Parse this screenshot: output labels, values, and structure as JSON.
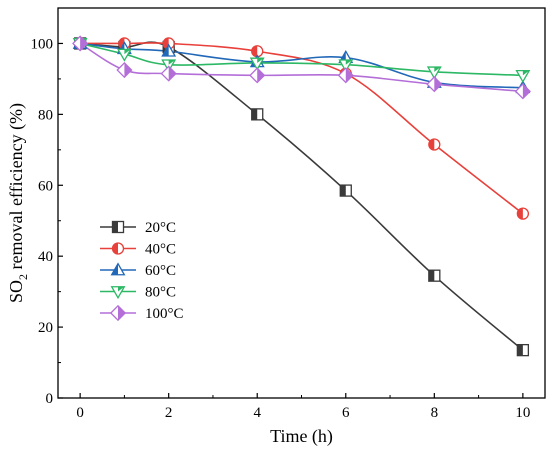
{
  "chart_data": {
    "type": "line",
    "title": "",
    "xlabel": "Time (h)",
    "ylabel_main": "SO",
    "ylabel_sub": "2",
    "ylabel_rest": " removal efficiency (%)",
    "xlim": [
      -0.5,
      10.5
    ],
    "ylim": [
      0,
      110
    ],
    "xticks": [
      0,
      2,
      4,
      6,
      8,
      10
    ],
    "yticks": [
      0,
      20,
      40,
      60,
      80,
      100
    ],
    "grid": false,
    "legend_position": "lower-left",
    "series": [
      {
        "name": "20°C",
        "color": "#3a3a3a",
        "marker": "square-half",
        "x": [
          0,
          1,
          2,
          4,
          6,
          8,
          10
        ],
        "y": [
          100,
          99,
          99,
          80,
          58.5,
          34.5,
          13.5
        ]
      },
      {
        "name": "40°C",
        "color": "#e8403a",
        "marker": "circle-half",
        "x": [
          0,
          1,
          2,
          4,
          6,
          8,
          10
        ],
        "y": [
          100,
          100,
          100,
          97.8,
          91.5,
          71.5,
          52
        ]
      },
      {
        "name": "60°C",
        "color": "#2268b8",
        "marker": "triangle-up-half",
        "x": [
          0,
          1,
          2,
          4,
          6,
          8,
          10
        ],
        "y": [
          100,
          98.5,
          97.8,
          94.8,
          96,
          89,
          87.5
        ]
      },
      {
        "name": "80°C",
        "color": "#2db865",
        "marker": "triangle-down-half",
        "x": [
          0,
          1,
          2,
          4,
          6,
          8,
          10
        ],
        "y": [
          100,
          97,
          94,
          94.5,
          94,
          92,
          91
        ]
      },
      {
        "name": "100°C",
        "color": "#b46ed8",
        "marker": "diamond-half",
        "x": [
          0,
          1,
          2,
          4,
          6,
          8,
          10
        ],
        "y": [
          100,
          92.5,
          91.5,
          91,
          91,
          88.5,
          86.5
        ]
      }
    ]
  }
}
